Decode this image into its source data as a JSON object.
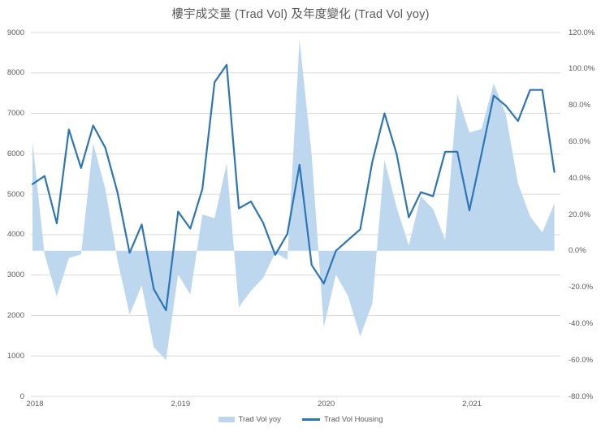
{
  "title": "樓宇成交量 (Trad Vol) 及年度變化 (Trad Vol yoy)",
  "legend": {
    "area_label": "Trad Vol yoy",
    "line_label": "Trad Vol Housing"
  },
  "colors": {
    "area_fill": "#BDD7EE",
    "line_stroke": "#2E75B6",
    "gridline": "#D9D9D9",
    "text": "#595959"
  },
  "chart_data": {
    "type": "combo (area + line)",
    "title": "樓宇成交量 (Trad Vol) 及年度變化 (Trad Vol yoy)",
    "x": [
      "2018-01",
      "2018-02",
      "2018-03",
      "2018-04",
      "2018-05",
      "2018-06",
      "2018-07",
      "2018-08",
      "2018-09",
      "2018-10",
      "2018-11",
      "2018-12",
      "2019-01",
      "2019-02",
      "2019-03",
      "2019-04",
      "2019-05",
      "2019-06",
      "2019-07",
      "2019-08",
      "2019-09",
      "2019-10",
      "2019-11",
      "2019-12",
      "2020-01",
      "2020-02",
      "2020-03",
      "2020-04",
      "2020-05",
      "2020-06",
      "2020-07",
      "2020-08",
      "2020-09",
      "2020-10",
      "2020-11",
      "2020-12",
      "2021-01",
      "2021-02",
      "2021-03",
      "2021-04",
      "2021-05",
      "2021-06",
      "2021-07",
      "2021-08"
    ],
    "x_axis": {
      "labels": [
        "2018",
        "2,019",
        "2020",
        "2,021"
      ],
      "label_month_index": [
        0,
        12,
        24,
        36
      ]
    },
    "left_axis": {
      "title": "",
      "min": 0,
      "max": 9000,
      "step": 1000,
      "ticks": [
        "9000",
        "8000",
        "7000",
        "6000",
        "5000",
        "4000",
        "3000",
        "2000",
        "1000",
        "0"
      ]
    },
    "right_axis": {
      "title": "",
      "min": -80,
      "max": 120,
      "step": 20,
      "ticks": [
        "120.0%",
        "100.0%",
        "80.0%",
        "60.0%",
        "40.0%",
        "20.0%",
        "0.0%",
        "-20.0%",
        "-40.0%",
        "-60.0%",
        "-80.0%"
      ]
    },
    "grid": "horizontal only, from left axis (every 1000)",
    "legend_position": "bottom center",
    "series": [
      {
        "name": "Trad Vol yoy",
        "type": "area",
        "axis": "right",
        "unit": "%",
        "values": [
          60,
          -2,
          -25,
          -4,
          -2,
          59,
          34,
          -5,
          -35,
          -19,
          -53,
          -60,
          -13,
          -24,
          20,
          18,
          48,
          -31,
          -22,
          -15,
          -1,
          -5,
          116,
          53,
          -42,
          -13,
          -25,
          -47,
          -29,
          50,
          24,
          3,
          30,
          23,
          6,
          86,
          65,
          67,
          92,
          75,
          37,
          19,
          10,
          26
        ]
      },
      {
        "name": "Trad Vol Housing",
        "type": "line",
        "axis": "left",
        "unit": "transactions",
        "values": [
          5250,
          5450,
          4280,
          6600,
          5650,
          6700,
          6150,
          5050,
          3550,
          4250,
          2650,
          2130,
          4570,
          4150,
          5130,
          7770,
          8200,
          4650,
          4820,
          4300,
          3500,
          4020,
          5730,
          3250,
          2790,
          3600,
          3870,
          4130,
          5800,
          7000,
          6000,
          4430,
          5050,
          4950,
          6050,
          6050,
          4600,
          6000,
          7440,
          7190,
          6810,
          7580,
          7580,
          5550
        ]
      }
    ]
  }
}
